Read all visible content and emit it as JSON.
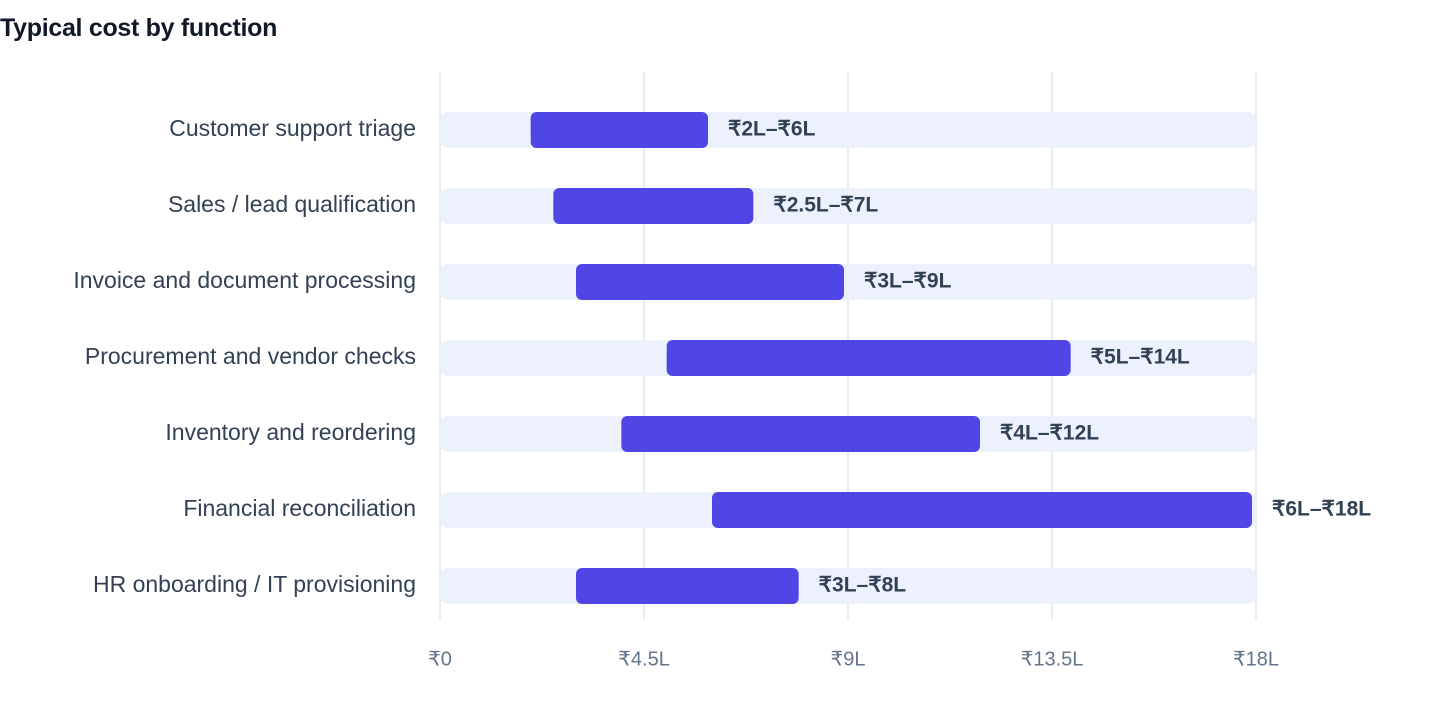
{
  "chart_data": {
    "type": "bar",
    "orientation": "horizontal-range",
    "title": "Typical cost by function",
    "unit": "₹ Lakh",
    "xlim": [
      0,
      18
    ],
    "grid": true,
    "colors": {
      "range": "#4f46e5",
      "track": "#edf1fd",
      "grid": "#e2e5ea"
    },
    "ticks": [
      {
        "value": 0,
        "label": "₹0"
      },
      {
        "value": 4.5,
        "label": "₹4.5L"
      },
      {
        "value": 9,
        "label": "₹9L"
      },
      {
        "value": 13.5,
        "label": "₹13.5L"
      },
      {
        "value": 18,
        "label": "₹18L"
      }
    ],
    "categories": [
      "Customer support triage",
      "Sales / lead qualification",
      "Invoice and document processing",
      "Procurement and vendor checks",
      "Inventory and reordering",
      "Financial reconciliation",
      "HR onboarding / IT provisioning"
    ],
    "ranges": [
      {
        "low": 2,
        "high": 6,
        "label": "₹2L–₹6L"
      },
      {
        "low": 2.5,
        "high": 7,
        "label": "₹2.5L–₹7L"
      },
      {
        "low": 3,
        "high": 9,
        "label": "₹3L–₹9L"
      },
      {
        "low": 5,
        "high": 14,
        "label": "₹5L–₹14L"
      },
      {
        "low": 4,
        "high": 12,
        "label": "₹4L–₹12L"
      },
      {
        "low": 6,
        "high": 18,
        "label": "₹6L–₹18L"
      },
      {
        "low": 3,
        "high": 8,
        "label": "₹3L–₹8L"
      }
    ]
  }
}
